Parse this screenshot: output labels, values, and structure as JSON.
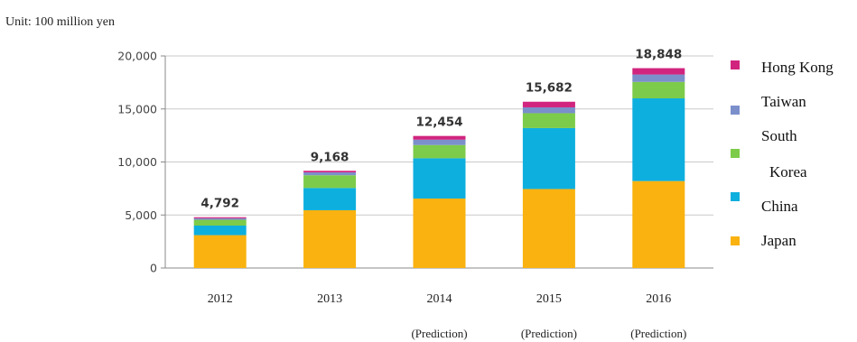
{
  "unit_label": "Unit: 100 million yen",
  "chart_data": {
    "type": "bar",
    "stacked": true,
    "categories": [
      "2012",
      "2013",
      "2014",
      "2015",
      "2016"
    ],
    "category_notes": [
      "",
      "",
      "(Prediction)",
      "(Prediction)",
      "(Prediction)"
    ],
    "totals": [
      "4,792",
      "9,168",
      "12,454",
      "15,682",
      "18,848"
    ],
    "series": [
      {
        "name": "Japan",
        "color": "#F9B20F",
        "values": [
          3100,
          5450,
          6550,
          7450,
          8200
        ]
      },
      {
        "name": "China",
        "color": "#0DAFDE",
        "values": [
          900,
          2100,
          3800,
          5750,
          7800
        ]
      },
      {
        "name": "South Korea",
        "color": "#7DCB4A",
        "values": [
          550,
          1200,
          1250,
          1400,
          1550
        ]
      },
      {
        "name": "Taiwan",
        "color": "#7B8FCB",
        "values": [
          142,
          268,
          504,
          552,
          698
        ]
      },
      {
        "name": "Hong Kong",
        "color": "#D1247E",
        "values": [
          100,
          150,
          350,
          530,
          600
        ]
      }
    ],
    "legend_entries": [
      {
        "lines": [
          "Hong Kong"
        ],
        "color": "#D1247E"
      },
      {
        "lines": [
          "Taiwan"
        ],
        "color": "#7B8FCB"
      },
      {
        "lines": [
          "South",
          "Korea"
        ],
        "color": "#7DCB4A"
      },
      {
        "lines": [
          "China"
        ],
        "color": "#0DAFDE"
      },
      {
        "lines": [
          "Japan"
        ],
        "color": "#F9B20F"
      }
    ],
    "yticks": [
      "0",
      "5,000",
      "10,000",
      "15,000",
      "20,000"
    ],
    "ylim": [
      0,
      20000
    ],
    "grid": "horizontal",
    "legend": "right",
    "xlabel": "",
    "ylabel": ""
  }
}
